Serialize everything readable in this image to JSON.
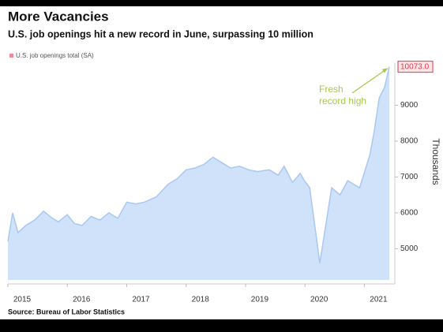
{
  "chart_data": {
    "type": "area",
    "title": "More Vacancies",
    "subtitle": "U.S. job openings hit a new record in June, surpassing 10 million",
    "source": "Source: Bureau of Labor Statistics",
    "y_label": "Thousands",
    "y_axis_side": "right",
    "legend": "top-left",
    "x": [
      2015.0,
      2015.08,
      2015.17,
      2015.3,
      2015.45,
      2015.6,
      2015.75,
      2015.85,
      2016.0,
      2016.12,
      2016.25,
      2016.4,
      2016.55,
      2016.7,
      2016.85,
      2017.0,
      2017.15,
      2017.3,
      2017.5,
      2017.7,
      2017.85,
      2018.0,
      2018.15,
      2018.3,
      2018.45,
      2018.6,
      2018.75,
      2018.9,
      2019.05,
      2019.2,
      2019.4,
      2019.55,
      2019.65,
      2019.79,
      2019.92,
      2019.99,
      2020.08,
      2020.25,
      2020.45,
      2020.59,
      2020.72,
      2020.92,
      2021.09,
      2021.16,
      2021.25,
      2021.34,
      2021.42
    ],
    "series": [
      {
        "name": "U.S. job openings total (SA)",
        "color": "#a9c8ef",
        "fill": "#cfe2fa",
        "legend_color": "#f08a9a",
        "values": [
          5200,
          6000,
          5450,
          5650,
          5800,
          6050,
          5850,
          5750,
          5950,
          5700,
          5650,
          5900,
          5800,
          6000,
          5850,
          6300,
          6250,
          6300,
          6450,
          6800,
          6950,
          7200,
          7250,
          7350,
          7550,
          7400,
          7250,
          7300,
          7200,
          7150,
          7200,
          7050,
          7300,
          6850,
          7100,
          6900,
          6700,
          4600,
          6700,
          6500,
          6900,
          6700,
          7600,
          8200,
          9200,
          9500,
          10073
        ]
      }
    ],
    "xlim": [
      2015.0,
      2021.42
    ],
    "xticks": [
      2015,
      2016,
      2017,
      2018,
      2019,
      2020,
      2021
    ],
    "ylim": [
      4130,
      10175
    ],
    "yticks": [
      5000,
      6000,
      7000,
      8000,
      9000
    ],
    "annotations": [
      {
        "text": "10073.0",
        "x": 2021.42,
        "y": 10073,
        "color": "#e8334a"
      },
      {
        "lines": [
          "Fresh",
          "record high"
        ],
        "x": 2021.42,
        "y": 10073,
        "color": "#a6c94a"
      }
    ]
  }
}
